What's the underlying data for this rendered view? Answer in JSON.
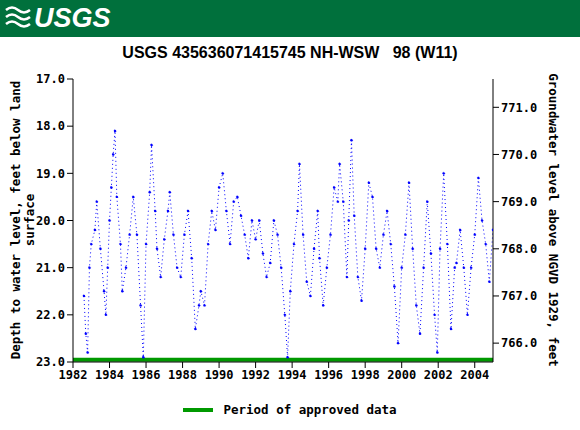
{
  "chart_data": {
    "type": "line",
    "header": "USGS",
    "title": "USGS 435636071415745 NH-WSW   98 (W11)",
    "ylabel": "Depth to water level, feet below land surface",
    "y2label": "Groundwater level above NGVD 1929, feet",
    "xlim": [
      1982,
      2005
    ],
    "xticks": [
      1982,
      1984,
      1986,
      1988,
      1990,
      1992,
      1994,
      1996,
      1998,
      2000,
      2002,
      2004
    ],
    "ylim": [
      23,
      17
    ],
    "yticks": [
      {
        "value": 17,
        "label": "17.0"
      },
      {
        "value": 18,
        "label": "18.0"
      },
      {
        "value": 19,
        "label": "19.0"
      },
      {
        "value": 20,
        "label": "20.0"
      },
      {
        "value": 21,
        "label": "21.0"
      },
      {
        "value": 22,
        "label": "22.0"
      },
      {
        "value": 23,
        "label": "23.0"
      }
    ],
    "y2lim": [
      765.6,
      771.6
    ],
    "y2ticks": [
      {
        "value": 766,
        "label": "766.0"
      },
      {
        "value": 767,
        "label": "767.0"
      },
      {
        "value": 768,
        "label": "768.0"
      },
      {
        "value": 769,
        "label": "769.0"
      },
      {
        "value": 770,
        "label": "770.0"
      },
      {
        "value": 771,
        "label": "771.0"
      }
    ],
    "series": [
      {
        "color": "#0000ff",
        "marker": "point",
        "line_style": "dotted",
        "x": [
          1982.6,
          1982.7,
          1982.8,
          1982.9,
          1983.0,
          1983.2,
          1983.3,
          1983.5,
          1983.7,
          1983.8,
          1983.9,
          1984.0,
          1984.1,
          1984.2,
          1984.3,
          1984.4,
          1984.6,
          1984.7,
          1984.9,
          1985.1,
          1985.3,
          1985.5,
          1985.7,
          1985.85,
          1986.0,
          1986.2,
          1986.3,
          1986.5,
          1986.6,
          1986.8,
          1987.0,
          1987.2,
          1987.3,
          1987.5,
          1987.7,
          1987.9,
          1988.1,
          1988.3,
          1988.5,
          1988.7,
          1988.9,
          1989.0,
          1989.2,
          1989.4,
          1989.6,
          1989.8,
          1990.0,
          1990.2,
          1990.4,
          1990.6,
          1990.8,
          1991.0,
          1991.2,
          1991.4,
          1991.6,
          1991.8,
          1992.0,
          1992.2,
          1992.4,
          1992.6,
          1992.8,
          1993.0,
          1993.2,
          1993.4,
          1993.6,
          1993.75,
          1993.9,
          1994.1,
          1994.3,
          1994.4,
          1994.6,
          1994.8,
          1995.0,
          1995.2,
          1995.4,
          1995.5,
          1995.7,
          1995.9,
          1996.1,
          1996.3,
          1996.5,
          1996.6,
          1996.8,
          1997.0,
          1997.1,
          1997.25,
          1997.4,
          1997.6,
          1997.8,
          1998.0,
          1998.2,
          1998.4,
          1998.6,
          1998.8,
          1999.0,
          1999.2,
          1999.4,
          1999.6,
          1999.8,
          2000.0,
          2000.2,
          2000.4,
          2000.6,
          2000.8,
          2001.0,
          2001.2,
          2001.4,
          2001.6,
          2001.8,
          2001.95,
          2002.1,
          2002.3,
          2002.5,
          2002.7,
          2002.9,
          2003.0,
          2003.2,
          2003.4,
          2003.6,
          2003.8,
          2004.0,
          2004.2,
          2004.4,
          2004.6,
          2004.8,
          2005.0
        ],
        "values": [
          21.6,
          22.4,
          22.8,
          21.0,
          20.5,
          20.2,
          19.6,
          20.6,
          21.5,
          22.0,
          21.0,
          20.0,
          19.3,
          18.6,
          18.1,
          19.5,
          20.5,
          21.5,
          21.0,
          20.3,
          19.5,
          20.3,
          21.8,
          22.9,
          20.5,
          19.4,
          18.4,
          19.8,
          20.6,
          21.2,
          20.4,
          19.8,
          19.4,
          20.3,
          21.0,
          21.2,
          20.3,
          19.8,
          20.8,
          22.3,
          21.8,
          21.5,
          21.8,
          20.5,
          19.8,
          20.2,
          19.3,
          19.0,
          19.8,
          20.5,
          19.6,
          19.5,
          19.9,
          20.3,
          20.8,
          20.0,
          20.4,
          20.0,
          20.7,
          21.2,
          20.9,
          20.0,
          20.3,
          21.0,
          22.0,
          22.9,
          21.5,
          20.5,
          19.8,
          18.8,
          20.3,
          21.3,
          21.6,
          20.6,
          19.8,
          20.8,
          21.8,
          21.0,
          20.3,
          19.3,
          19.6,
          18.8,
          19.6,
          21.2,
          20.0,
          18.3,
          19.9,
          21.2,
          21.7,
          20.6,
          19.2,
          19.5,
          20.6,
          21.0,
          20.3,
          19.8,
          20.5,
          21.4,
          22.6,
          21.0,
          20.3,
          19.2,
          20.6,
          21.8,
          22.4,
          21.0,
          19.6,
          20.7,
          22.0,
          22.8,
          20.6,
          19.0,
          20.5,
          22.3,
          21.0,
          20.9,
          20.2,
          21.0,
          22.0,
          21.0,
          20.3,
          19.1,
          20.0,
          20.5,
          21.3,
          20.2
        ]
      },
      {
        "name": "Period of approved data",
        "color": "#009900",
        "line_style": "solid",
        "x": [
          1982,
          2005
        ],
        "values": [
          22.95,
          22.95
        ]
      }
    ]
  }
}
